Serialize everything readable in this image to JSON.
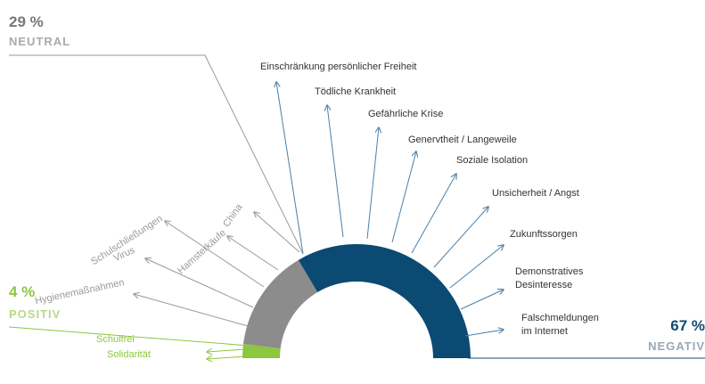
{
  "chart_data": {
    "type": "semi-donut",
    "categories": [
      "POSITIV",
      "NEUTRAL",
      "NEGATIV"
    ],
    "values": [
      4,
      29,
      67
    ],
    "value_labels": [
      "4 %",
      "29 %",
      "67 %"
    ],
    "colors": [
      "#8dc63f",
      "#8c8c8c",
      "#0b4a73"
    ],
    "topics": [
      [
        [
          "Schulfrei"
        ],
        [
          "Solidarität"
        ]
      ],
      [
        [
          "China"
        ],
        [
          "Hamsterkäufe"
        ],
        [
          "Schulschließungen"
        ],
        [
          "Virus"
        ],
        [
          "Hygienemaßnahmen"
        ]
      ],
      [
        [
          "Einschränkung persönlicher Freiheit"
        ],
        [
          "Tödliche Krankheit"
        ],
        [
          "Gefährliche Krise"
        ],
        [
          "Genervtheit / Langeweile"
        ],
        [
          "Soziale Isolation"
        ],
        [
          "Unsicherheit / Angst"
        ],
        [
          "Zukunftssorgen"
        ],
        [
          "Demonstratives",
          "Desinteresse"
        ],
        [
          "Falschmeldungen",
          "im Internet"
        ]
      ]
    ]
  }
}
